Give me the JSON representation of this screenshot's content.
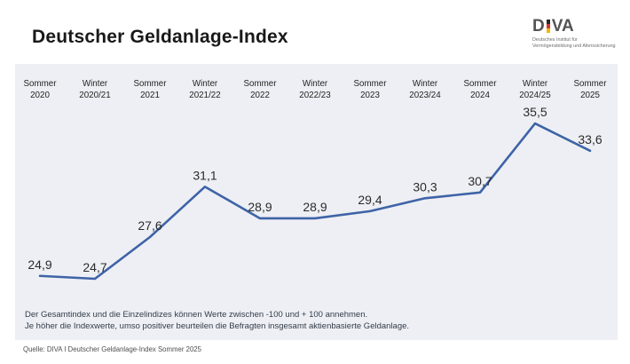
{
  "header": {
    "title": "Deutscher Geldanlage-Index"
  },
  "logo": {
    "left": "D",
    "right": "VA",
    "subtitle_line1": "Deutsches Institut für",
    "subtitle_line2": "Vermögensbildung und Alterssicherung",
    "flag_colors": [
      "#262626",
      "#d23430",
      "#f4b800"
    ],
    "text_color": "#545456"
  },
  "chart_data": {
    "type": "line",
    "title": "Deutscher Geldanlage-Index",
    "categories": [
      "Sommer 2020",
      "Winter 2020/21",
      "Sommer 2021",
      "Winter 2021/22",
      "Sommer 2022",
      "Winter 2022/23",
      "Sommer 2023",
      "Winter 2023/24",
      "Sommer 2024",
      "Winter 2024/25",
      "Sommer 2025"
    ],
    "categories_two_line": [
      {
        "top": "Sommer",
        "bottom": "2020"
      },
      {
        "top": "Winter",
        "bottom": "2020/21"
      },
      {
        "top": "Sommer",
        "bottom": "2021"
      },
      {
        "top": "Winter",
        "bottom": "2021/22"
      },
      {
        "top": "Sommer",
        "bottom": "2022"
      },
      {
        "top": "Winter",
        "bottom": "2022/23"
      },
      {
        "top": "Sommer",
        "bottom": "2023"
      },
      {
        "top": "Winter",
        "bottom": "2023/24"
      },
      {
        "top": "Sommer",
        "bottom": "2024"
      },
      {
        "top": "Winter",
        "bottom": "2024/25"
      },
      {
        "top": "Sommer",
        "bottom": "2025"
      }
    ],
    "values": [
      24.9,
      24.7,
      27.6,
      31.1,
      28.9,
      28.9,
      29.4,
      30.3,
      30.7,
      35.5,
      33.6
    ],
    "value_labels": [
      "24,9",
      "24,7",
      "27,6",
      "31,1",
      "28,9",
      "28,9",
      "29,4",
      "30,3",
      "30,7",
      "35,5",
      "33,6"
    ],
    "possible_range": [
      -100,
      100
    ],
    "line_color": "#3e63a7",
    "background": "#edeff4",
    "axis": "none",
    "grid": false,
    "legend": false,
    "label_position": "above-points",
    "x_axis_position": "top"
  },
  "chart_notes": {
    "line1": "Der Gesamtindex und die Einzelindizes können Werte zwischen -100 und + 100 annehmen.",
    "line2": "Je höher die Indexwerte, umso positiver beurteilen die Befragten insgesamt aktienbasierte Geldanlage."
  },
  "source": "Quelle: DIVA I Deutscher Geldanlage-Index Sommer 2025"
}
